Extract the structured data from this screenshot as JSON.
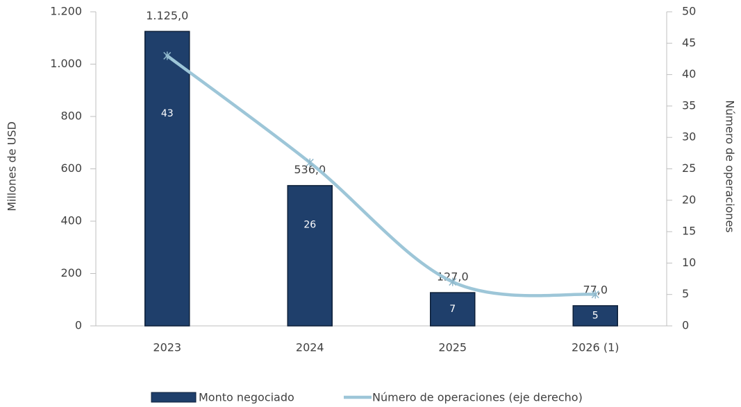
{
  "chart_data": {
    "type": "bar_line",
    "categories": [
      "2023",
      "2024",
      "2025",
      "2026 (1)"
    ],
    "y_label": "Millones de USD",
    "y2_label": "Número de operaciones",
    "ylim": [
      0,
      1200
    ],
    "yticks": [
      0,
      200,
      400,
      600,
      800,
      {
        "value": 1000,
        "label": "1.000"
      },
      {
        "value": 1200,
        "label": "1.200"
      }
    ],
    "y2lim": [
      0,
      50
    ],
    "y2ticks": [
      0,
      5,
      10,
      15,
      20,
      25,
      30,
      35,
      40,
      45,
      50
    ],
    "series": [
      {
        "name": "Monto negociado",
        "type": "bar",
        "color": "#1f3f6b",
        "values": [
          1125,
          536,
          127,
          77
        ],
        "value_labels": [
          "1.125,0",
          "536,0",
          "127,0",
          "77,0"
        ]
      },
      {
        "name": "Número de operaciones (eje derecho)",
        "type": "line",
        "axis": "y2",
        "color": "#9dc6d8",
        "values": [
          43,
          26,
          7,
          5
        ]
      }
    ],
    "legend": "bottom"
  }
}
